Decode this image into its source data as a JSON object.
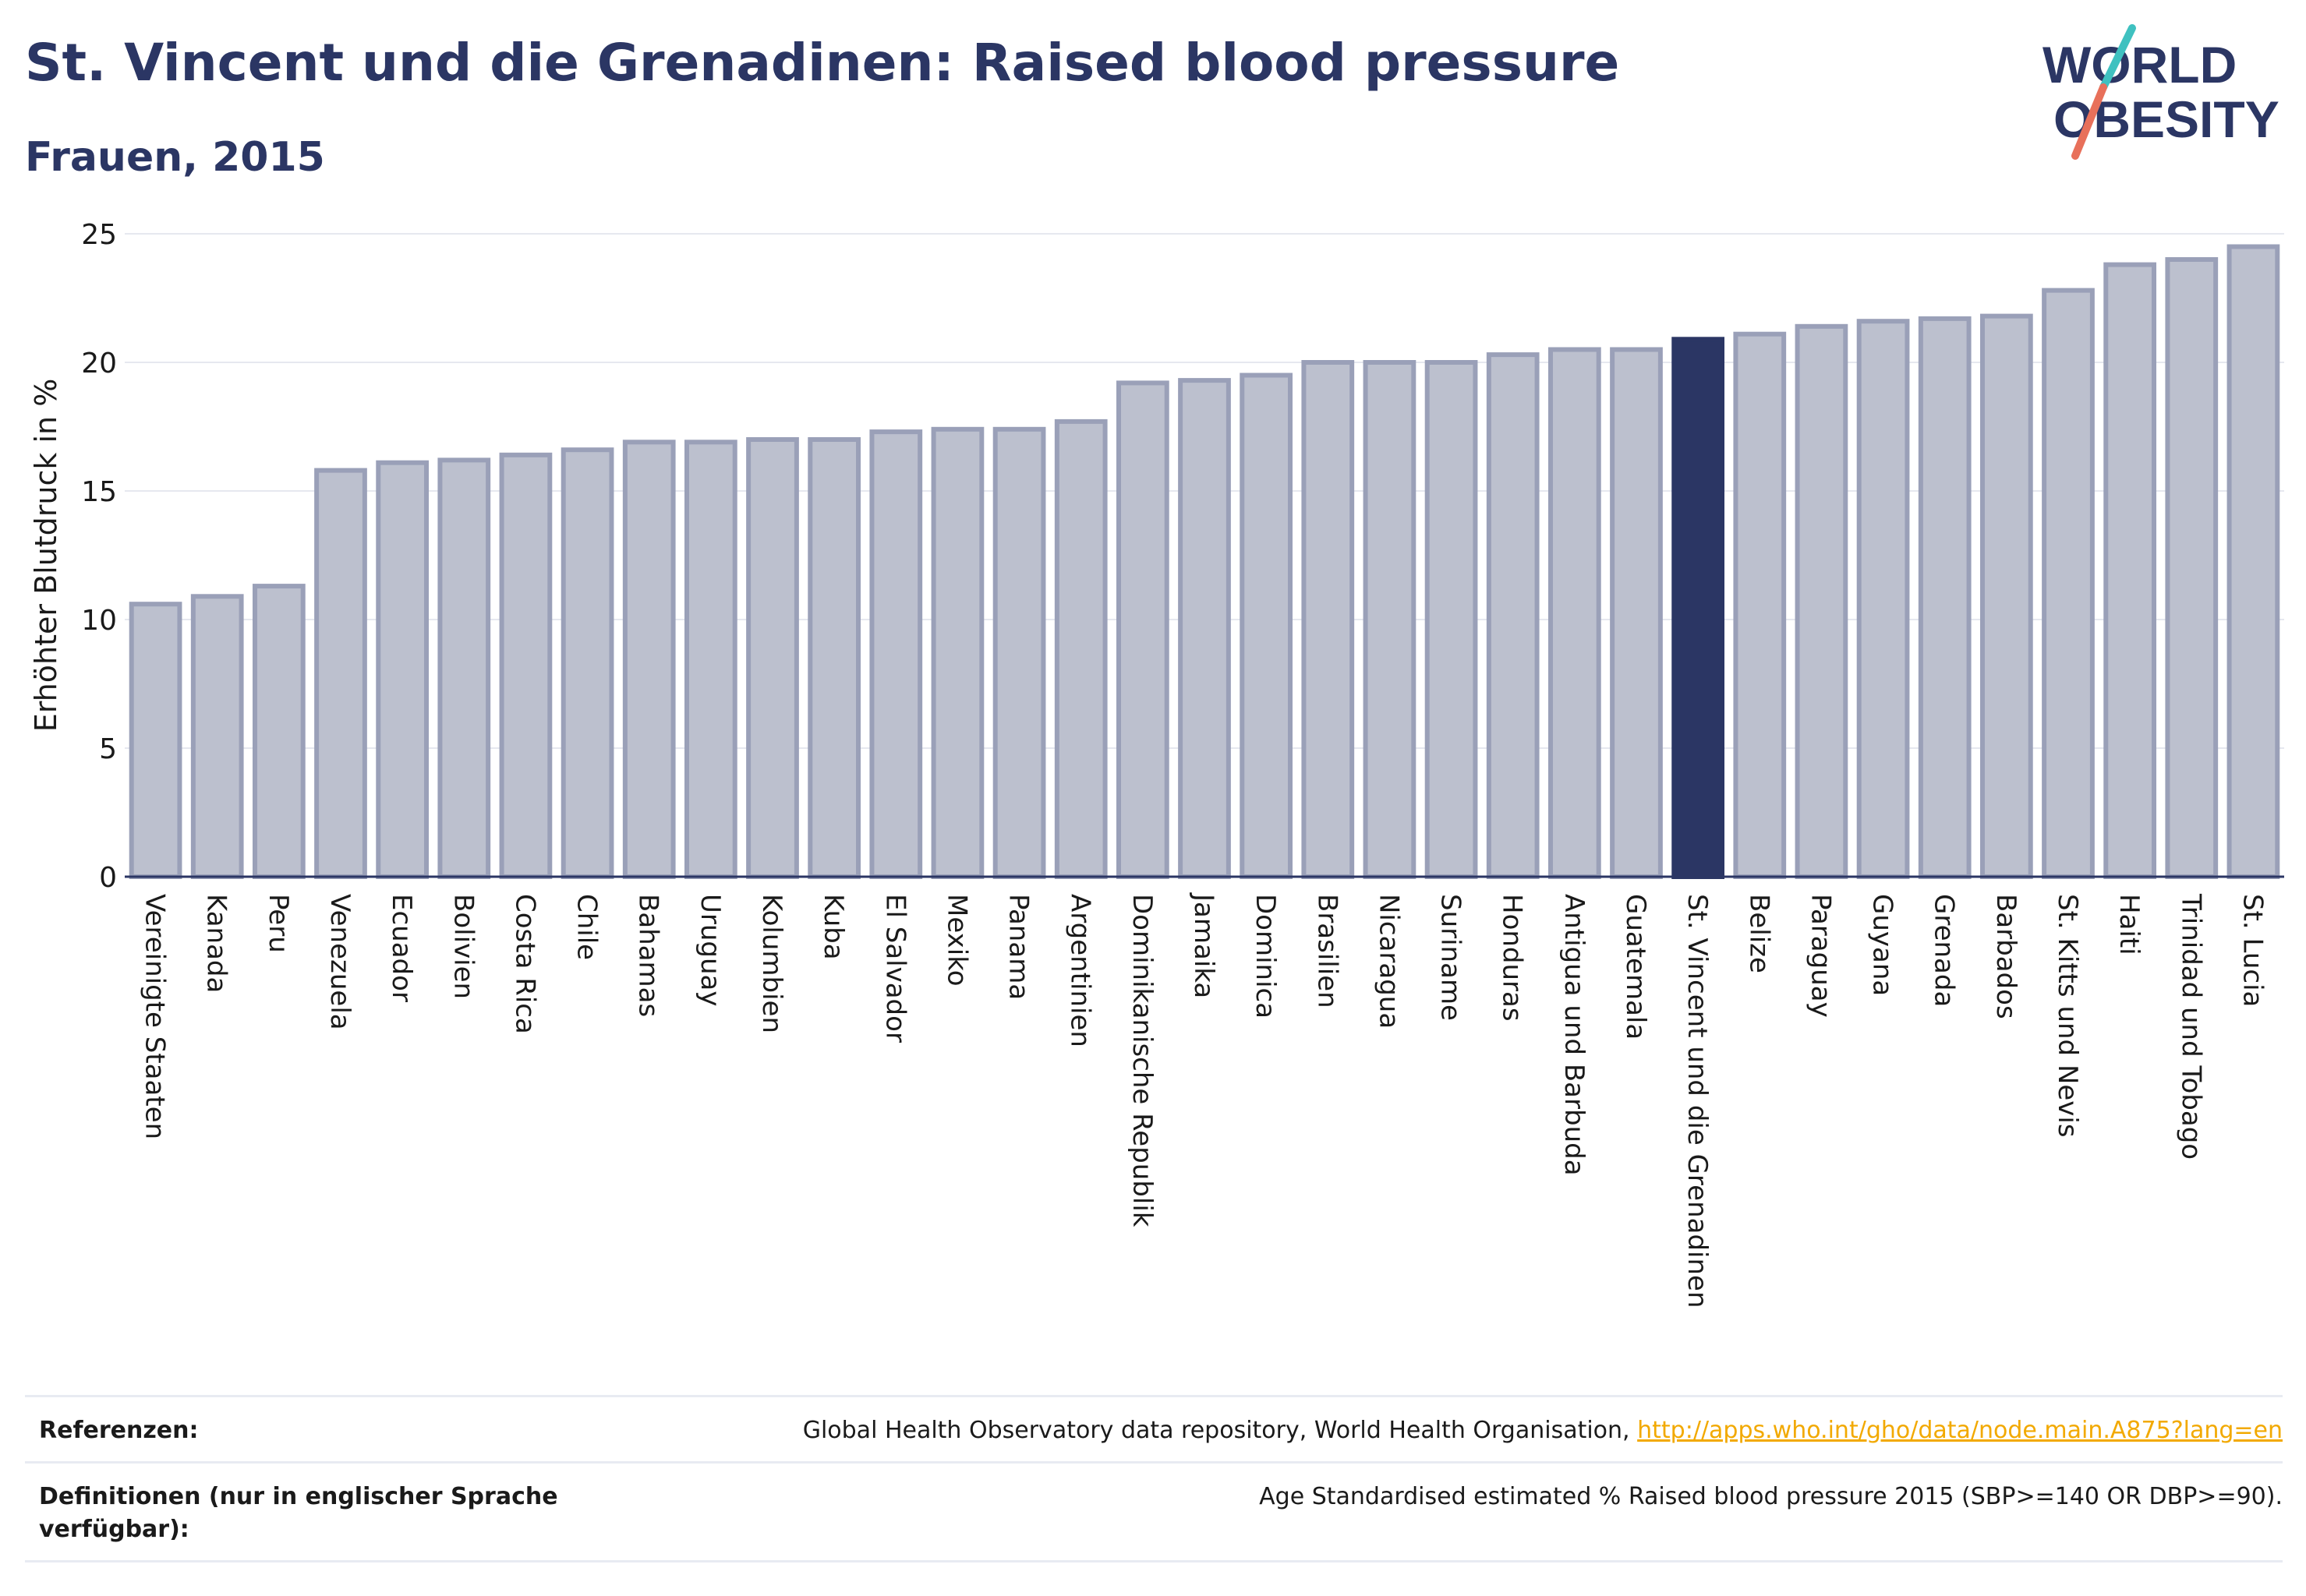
{
  "header": {
    "title": "St. Vincent und die Grenadinen: Raised blood pressure",
    "subtitle": "Frauen, 2015"
  },
  "logo": {
    "line1": "WORLD",
    "line2": "OBESITY"
  },
  "colors": {
    "title": "#2b3664",
    "bar_fill": "#bcc0ce",
    "bar_stroke": "#9aa0b8",
    "highlight": "#2b3664",
    "link": "#f2a900",
    "logo_slash_teal": "#3fc1c0",
    "logo_slash_coral": "#e8705a"
  },
  "chart_data": {
    "type": "bar",
    "ylabel": "Erhöhter Blutdruck in %",
    "ylim": [
      0,
      25
    ],
    "yticks": [
      0,
      5,
      10,
      15,
      20,
      25
    ],
    "highlight_category": "St. Vincent und die Grenadinen",
    "categories": [
      "Vereinigte Staaten",
      "Kanada",
      "Peru",
      "Venezuela",
      "Ecuador",
      "Bolivien",
      "Costa Rica",
      "Chile",
      "Bahamas",
      "Uruguay",
      "Kolumbien",
      "Kuba",
      "El Salvador",
      "Mexiko",
      "Panama",
      "Argentinien",
      "Dominikanische Republik",
      "Jamaika",
      "Dominica",
      "Brasilien",
      "Nicaragua",
      "Suriname",
      "Honduras",
      "Antigua und Barbuda",
      "Guatemala",
      "St. Vincent und die Grenadinen",
      "Belize",
      "Paraguay",
      "Guyana",
      "Grenada",
      "Barbados",
      "St. Kitts und Nevis",
      "Haiti",
      "Trinidad und Tobago",
      "St. Lucia"
    ],
    "values": [
      10.6,
      10.9,
      11.3,
      15.8,
      16.1,
      16.2,
      16.4,
      16.6,
      16.9,
      16.9,
      17.0,
      17.0,
      17.3,
      17.4,
      17.4,
      17.7,
      19.2,
      19.3,
      19.5,
      20.0,
      20.0,
      20.0,
      20.3,
      20.5,
      20.5,
      20.9,
      21.1,
      21.4,
      21.6,
      21.7,
      21.8,
      22.8,
      23.8,
      24.0,
      24.5
    ]
  },
  "footer": {
    "references_label": "Referenzen:",
    "references_text": "Global Health Observatory data repository, World Health Organisation,",
    "references_link": "http://apps.who.int/gho/data/node.main.A875?lang=en",
    "definitions_label": "Definitionen (nur in englischer Sprache verfügbar):",
    "definitions_text": "Age Standardised estimated % Raised blood pressure 2015 (SBP>=140 OR DBP>=90)."
  }
}
